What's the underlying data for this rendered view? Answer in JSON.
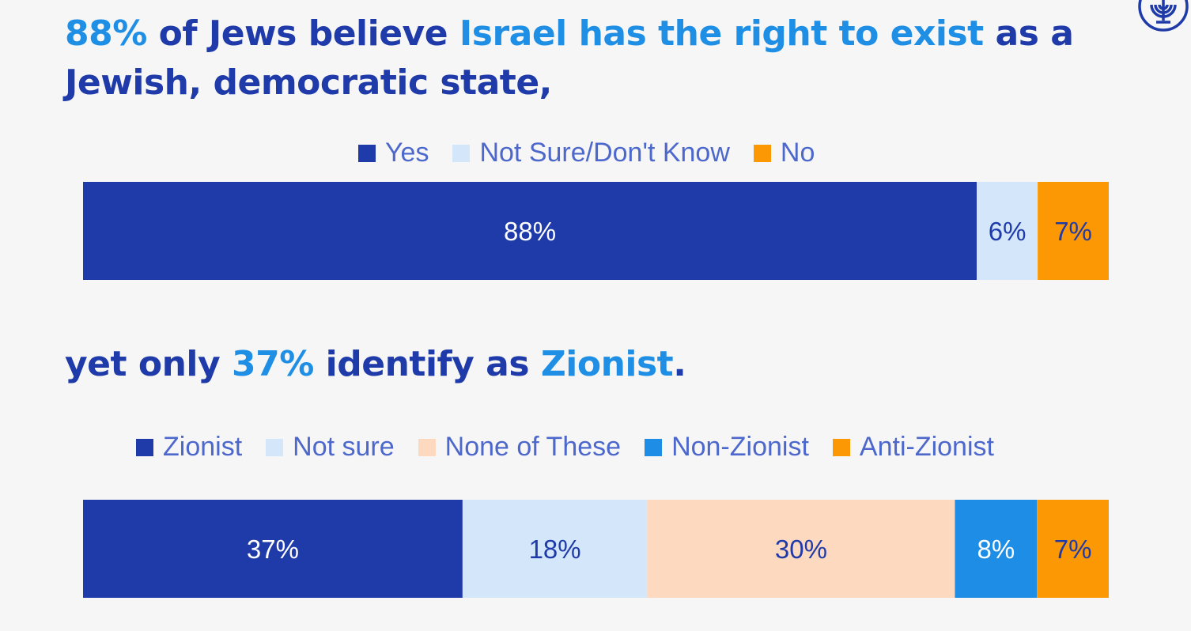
{
  "headline_1": {
    "part1": "88%",
    "part2": " of Jews believe ",
    "part3": "Israel has the right to exist",
    "part4": " as a Jewish, democratic state,"
  },
  "headline_2": {
    "part1": "yet only ",
    "part2": "37%",
    "part3": " identify as ",
    "part4": "Zionist",
    "part5": "."
  },
  "logo_icon": "menorah-logo-icon",
  "colors": {
    "dark_blue": "#1f3aa9",
    "light_blue": "#d4e7fa",
    "orange": "#fb9804",
    "peach": "#fdd9bf",
    "mid_blue": "#1e8de6",
    "legend_text": "#4d68cc"
  },
  "chart_data": [
    {
      "type": "bar",
      "stacked": true,
      "orientation": "horizontal",
      "categories": [
        ""
      ],
      "legend_position": "top",
      "series": [
        {
          "name": "Yes",
          "values": [
            88
          ],
          "label": "88%",
          "color": "#1f3aa9",
          "label_color": "#ffffff"
        },
        {
          "name": "Not Sure/Don't Know",
          "values": [
            6
          ],
          "label": "6%",
          "color": "#d4e7fa",
          "label_color": "#1f3aa9"
        },
        {
          "name": "No",
          "values": [
            7
          ],
          "label": "7%",
          "color": "#fb9804",
          "label_color": "#1f3aa9"
        }
      ]
    },
    {
      "type": "bar",
      "stacked": true,
      "orientation": "horizontal",
      "categories": [
        ""
      ],
      "legend_position": "top",
      "series": [
        {
          "name": "Zionist",
          "values": [
            37
          ],
          "label": "37%",
          "color": "#1f3aa9",
          "label_color": "#ffffff"
        },
        {
          "name": "Not sure",
          "values": [
            18
          ],
          "label": "18%",
          "color": "#d4e7fa",
          "label_color": "#1f3aa9"
        },
        {
          "name": "None of These",
          "values": [
            30
          ],
          "label": "30%",
          "color": "#fdd9bf",
          "label_color": "#1f3aa9"
        },
        {
          "name": "Non-Zionist",
          "values": [
            8
          ],
          "label": "8%",
          "color": "#1e8de6",
          "label_color": "#ffffff"
        },
        {
          "name": "Anti-Zionist",
          "values": [
            7
          ],
          "label": "7%",
          "color": "#fb9804",
          "label_color": "#1f3aa9"
        }
      ]
    }
  ]
}
